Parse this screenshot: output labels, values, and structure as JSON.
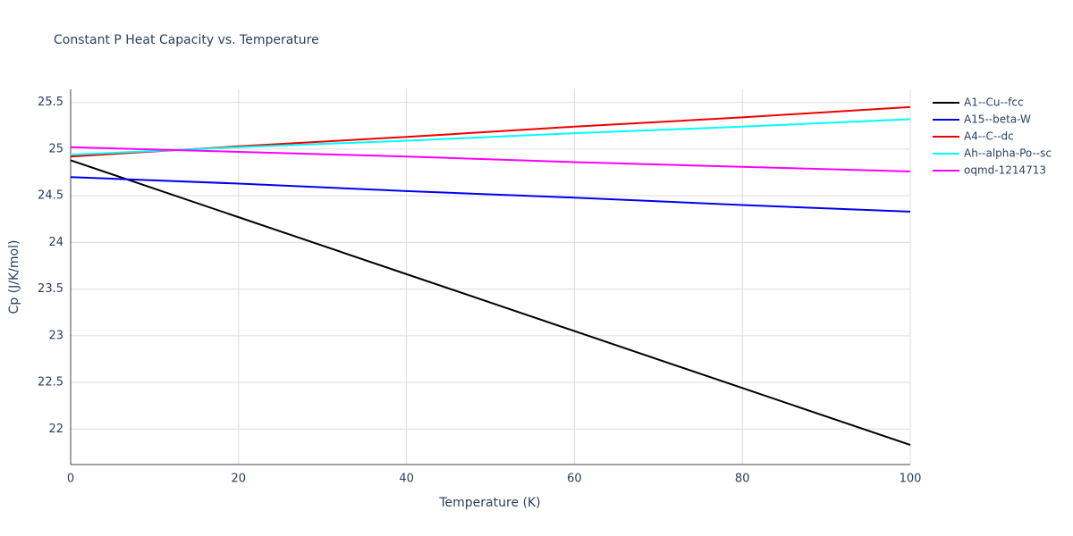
{
  "chart_data": {
    "type": "line",
    "title": "Constant P Heat Capacity vs. Temperature",
    "x_label": "Temperature (K)",
    "y_label": "Cp (J/K/mol)",
    "x": [
      0,
      20,
      40,
      60,
      80,
      100
    ],
    "series": [
      {
        "name": "A1--Cu--fcc",
        "color": "#000000",
        "values": [
          24.88,
          24.27,
          23.66,
          23.05,
          22.44,
          21.83
        ]
      },
      {
        "name": "A15--beta-W",
        "color": "#0000ee",
        "values": [
          24.7,
          24.63,
          24.55,
          24.48,
          24.4,
          24.33
        ]
      },
      {
        "name": "A4--C--dc",
        "color": "#ee0000",
        "values": [
          24.92,
          25.03,
          25.13,
          25.24,
          25.34,
          25.45
        ]
      },
      {
        "name": "Ah--alpha-Po--sc",
        "color": "#00ffff",
        "values": [
          24.94,
          25.02,
          25.09,
          25.17,
          25.24,
          25.32
        ]
      },
      {
        "name": "oqmd-1214713",
        "color": "#ff00ff",
        "values": [
          25.02,
          24.97,
          24.92,
          24.86,
          24.81,
          24.76
        ]
      }
    ],
    "xlim": [
      0,
      100
    ],
    "xticks": [
      0,
      20,
      40,
      60,
      80,
      100
    ],
    "ylim": [
      21.62,
      25.64
    ],
    "yticks": [
      22,
      22.5,
      23,
      23.5,
      24,
      24.5,
      25,
      25.5
    ],
    "grid": true,
    "legend": "right"
  }
}
